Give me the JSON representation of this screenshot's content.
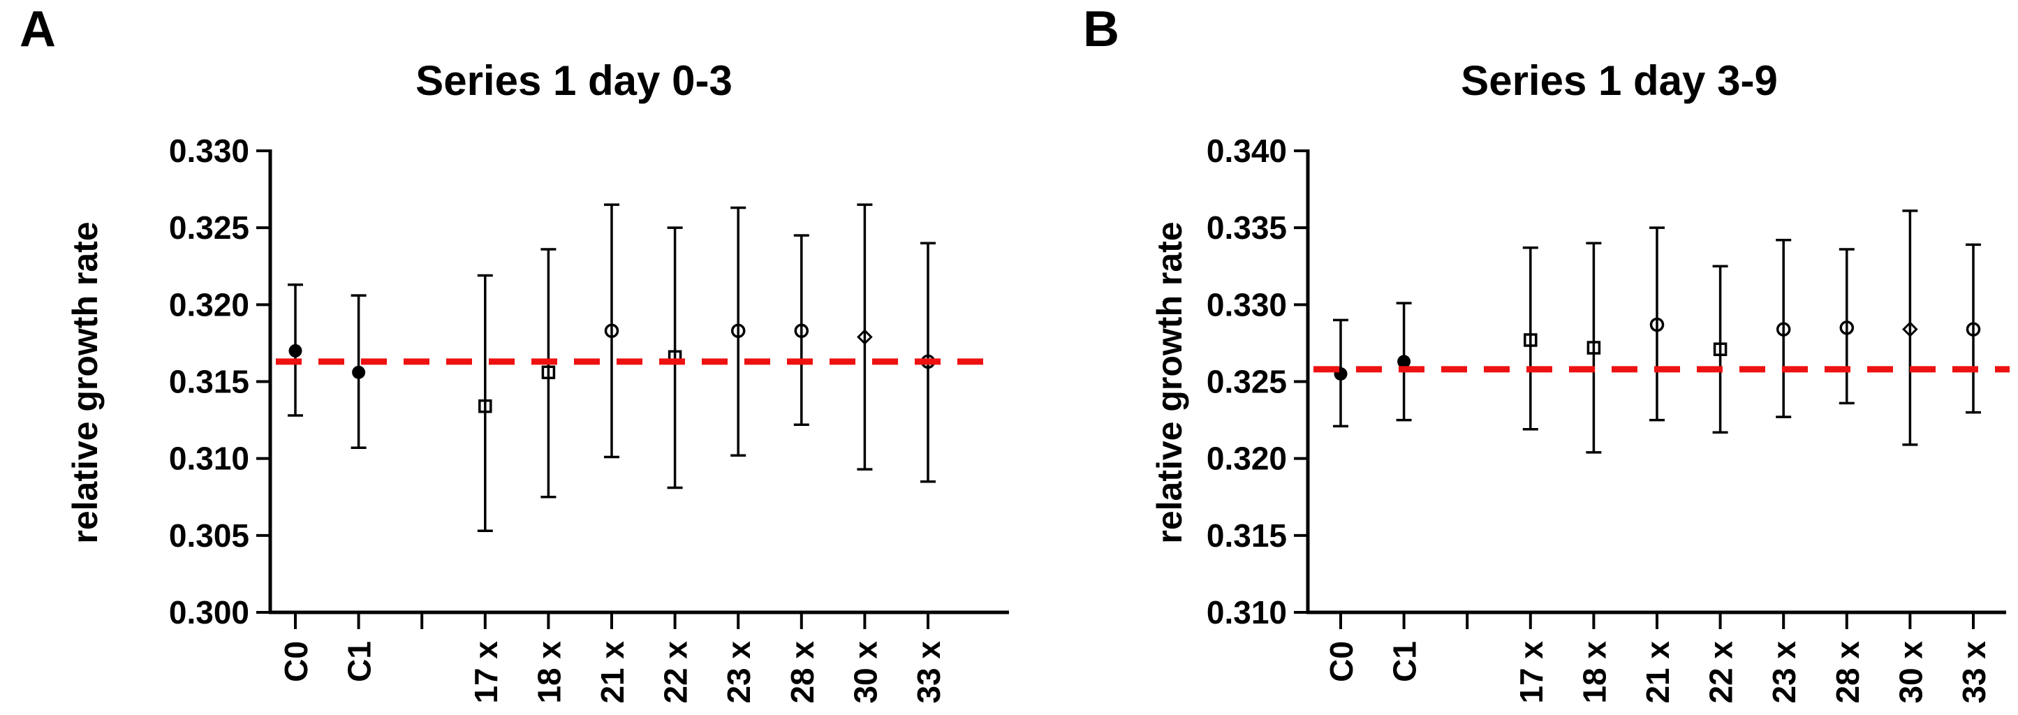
{
  "figure": {
    "background": "#FFFFFF",
    "axis_color": "#000000",
    "reference_line_color": "#EE1111"
  },
  "chart_data": [
    {
      "type": "scatter",
      "panel_letter": "A",
      "title": "Series 1 day 0-3",
      "xlabel": "",
      "ylabel": "relative growth rate",
      "ylim": [
        0.3,
        0.33
      ],
      "ytick_step": 0.005,
      "ytick_labels": [
        "0.300",
        "0.305",
        "0.310",
        "0.315",
        "0.320",
        "0.325",
        "0.330"
      ],
      "grid": false,
      "legend_position": "none",
      "slot_count": 11,
      "empty_slot_note": "gap between controls and treatment lines at slot index 2",
      "categories": [
        "C0",
        "C1",
        "17 x",
        "18 x",
        "21 x",
        "22 x",
        "23 x",
        "28 x",
        "30 x",
        "33 x"
      ],
      "reference_line": {
        "value": 0.3163,
        "style": "dashed",
        "color": "#EE1111"
      },
      "series": [
        {
          "name": "relative growth rate mean with error bars",
          "points": [
            {
              "label": "C0",
              "slot": 0,
              "mean": 0.317,
              "lo": 0.3128,
              "hi": 0.3213,
              "marker": "filled-circle"
            },
            {
              "label": "C1",
              "slot": 1,
              "mean": 0.3156,
              "lo": 0.3107,
              "hi": 0.3206,
              "marker": "filled-circle"
            },
            {
              "label": "17 x",
              "slot": 3,
              "mean": 0.3134,
              "lo": 0.3053,
              "hi": 0.3219,
              "marker": "open-square"
            },
            {
              "label": "18 x",
              "slot": 4,
              "mean": 0.3156,
              "lo": 0.3075,
              "hi": 0.3236,
              "marker": "open-square"
            },
            {
              "label": "21 x",
              "slot": 5,
              "mean": 0.3183,
              "lo": 0.3101,
              "hi": 0.3265,
              "marker": "open-circle"
            },
            {
              "label": "22 x",
              "slot": 6,
              "mean": 0.3166,
              "lo": 0.3081,
              "hi": 0.325,
              "marker": "open-square"
            },
            {
              "label": "23 x",
              "slot": 7,
              "mean": 0.3183,
              "lo": 0.3102,
              "hi": 0.3263,
              "marker": "open-circle"
            },
            {
              "label": "28 x",
              "slot": 8,
              "mean": 0.3183,
              "lo": 0.3122,
              "hi": 0.3245,
              "marker": "open-circle"
            },
            {
              "label": "30 x",
              "slot": 9,
              "mean": 0.3179,
              "lo": 0.3093,
              "hi": 0.3265,
              "marker": "open-diamond"
            },
            {
              "label": "33 x",
              "slot": 10,
              "mean": 0.3163,
              "lo": 0.3085,
              "hi": 0.324,
              "marker": "open-circle"
            }
          ]
        }
      ]
    },
    {
      "type": "scatter",
      "panel_letter": "B",
      "title": "Series 1 day 3-9",
      "xlabel": "",
      "ylabel": "relative growth rate",
      "ylim": [
        0.31,
        0.34
      ],
      "ytick_step": 0.005,
      "ytick_labels": [
        "0.310",
        "0.315",
        "0.320",
        "0.325",
        "0.330",
        "0.335",
        "0.340"
      ],
      "grid": false,
      "legend_position": "none",
      "slot_count": 11,
      "empty_slot_note": "gap between controls and treatment lines at slot index 2",
      "categories": [
        "C0",
        "C1",
        "17 x",
        "18 x",
        "21 x",
        "22 x",
        "23 x",
        "28 x",
        "30 x",
        "33 x"
      ],
      "reference_line": {
        "value": 0.3258,
        "style": "dashed",
        "color": "#EE1111"
      },
      "series": [
        {
          "name": "relative growth rate mean with error bars",
          "points": [
            {
              "label": "C0",
              "slot": 0,
              "mean": 0.3255,
              "lo": 0.3221,
              "hi": 0.329,
              "marker": "filled-circle"
            },
            {
              "label": "C1",
              "slot": 1,
              "mean": 0.3263,
              "lo": 0.3225,
              "hi": 0.3301,
              "marker": "filled-circle"
            },
            {
              "label": "17 x",
              "slot": 3,
              "mean": 0.3277,
              "lo": 0.3219,
              "hi": 0.3337,
              "marker": "open-square"
            },
            {
              "label": "18 x",
              "slot": 4,
              "mean": 0.3272,
              "lo": 0.3204,
              "hi": 0.334,
              "marker": "open-square"
            },
            {
              "label": "21 x",
              "slot": 5,
              "mean": 0.3287,
              "lo": 0.3225,
              "hi": 0.335,
              "marker": "open-circle"
            },
            {
              "label": "22 x",
              "slot": 6,
              "mean": 0.3271,
              "lo": 0.3217,
              "hi": 0.3325,
              "marker": "open-square"
            },
            {
              "label": "23 x",
              "slot": 7,
              "mean": 0.3284,
              "lo": 0.3227,
              "hi": 0.3342,
              "marker": "open-circle"
            },
            {
              "label": "28 x",
              "slot": 8,
              "mean": 0.3285,
              "lo": 0.3236,
              "hi": 0.3336,
              "marker": "open-circle"
            },
            {
              "label": "30 x",
              "slot": 9,
              "mean": 0.3284,
              "lo": 0.3209,
              "hi": 0.3361,
              "marker": "open-diamond"
            },
            {
              "label": "33 x",
              "slot": 10,
              "mean": 0.3284,
              "lo": 0.323,
              "hi": 0.3339,
              "marker": "open-circle"
            }
          ]
        }
      ]
    }
  ]
}
